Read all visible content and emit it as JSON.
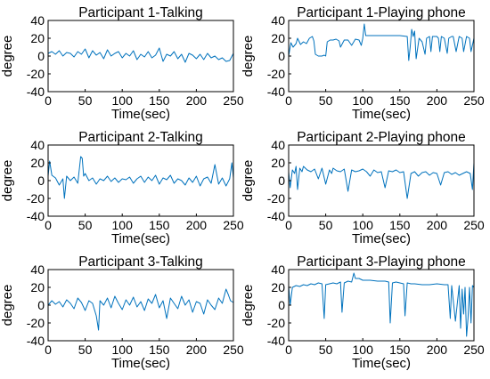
{
  "figure": {
    "colors": {
      "series": "#0072bd",
      "axis": "#000000",
      "background": "#ffffff"
    }
  },
  "chart_data": [
    {
      "type": "line",
      "title": "Participant 1-Talking",
      "xlabel": "Time(sec)",
      "ylabel": "degree",
      "xlim": [
        0,
        250
      ],
      "ylim": [
        -40,
        40
      ],
      "xticks": [
        0,
        50,
        100,
        150,
        200,
        250
      ],
      "yticks": [
        -40,
        -20,
        0,
        20,
        40
      ],
      "grid": false,
      "series": [
        {
          "x": [
            0,
            5,
            10,
            15,
            20,
            25,
            30,
            35,
            40,
            45,
            50,
            55,
            60,
            65,
            70,
            75,
            80,
            85,
            90,
            95,
            100,
            105,
            110,
            115,
            120,
            125,
            130,
            135,
            140,
            145,
            150,
            155,
            160,
            165,
            170,
            175,
            180,
            185,
            190,
            195,
            200,
            205,
            210,
            215,
            220,
            225,
            230,
            235,
            240,
            245,
            250
          ],
          "y": [
            3,
            5,
            2,
            6,
            0,
            4,
            3,
            -1,
            5,
            2,
            8,
            -2,
            6,
            1,
            4,
            -3,
            7,
            0,
            3,
            5,
            -2,
            3,
            0,
            6,
            -4,
            2,
            -1,
            5,
            -2,
            1,
            9,
            -6,
            2,
            0,
            5,
            -3,
            2,
            -7,
            3,
            1,
            -3,
            2,
            -4,
            3,
            -2,
            0,
            -4,
            -2,
            -6,
            -5,
            3
          ]
        }
      ]
    },
    {
      "type": "line",
      "title": "Participant 1-Playing phone",
      "xlabel": "Time(sec)",
      "ylabel": "degree",
      "xlim": [
        0,
        250
      ],
      "ylim": [
        -40,
        40
      ],
      "xticks": [
        0,
        50,
        100,
        150,
        200,
        250
      ],
      "yticks": [
        -40,
        -20,
        0,
        20,
        40
      ],
      "grid": false,
      "series": [
        {
          "x": [
            0,
            3,
            6,
            10,
            12,
            16,
            20,
            24,
            28,
            32,
            34,
            36,
            40,
            45,
            48,
            50,
            52,
            56,
            60,
            64,
            68,
            70,
            75,
            80,
            85,
            90,
            95,
            98,
            100,
            102,
            104,
            106,
            110,
            120,
            130,
            140,
            150,
            160,
            162,
            164,
            166,
            168,
            170,
            172,
            176,
            180,
            184,
            186,
            190,
            192,
            194,
            200,
            202,
            204,
            206,
            210,
            214,
            216,
            220,
            222,
            226,
            230,
            234,
            236,
            240,
            244,
            246,
            250
          ],
          "y": [
            0,
            15,
            10,
            14,
            20,
            13,
            16,
            14,
            20,
            22,
            17,
            2,
            0,
            0,
            1,
            0,
            16,
            18,
            18,
            19,
            17,
            10,
            18,
            18,
            12,
            19,
            18,
            12,
            20,
            36,
            23,
            23,
            23,
            23,
            23,
            23,
            23,
            22,
            -5,
            10,
            30,
            22,
            28,
            -3,
            20,
            16,
            2,
            20,
            22,
            5,
            22,
            22,
            20,
            5,
            22,
            20,
            3,
            20,
            22,
            22,
            5,
            22,
            20,
            5,
            22,
            20,
            5,
            20
          ]
        }
      ]
    },
    {
      "type": "line",
      "title": "Participant 2-Talking",
      "xlabel": "Time(sec)",
      "ylabel": "degree",
      "xlim": [
        0,
        250
      ],
      "ylim": [
        -40,
        40
      ],
      "xticks": [
        0,
        50,
        100,
        150,
        200,
        250
      ],
      "yticks": [
        -40,
        -20,
        0,
        20,
        40
      ],
      "grid": false,
      "series": [
        {
          "x": [
            0,
            2,
            5,
            10,
            15,
            20,
            22,
            25,
            30,
            35,
            40,
            44,
            46,
            48,
            50,
            55,
            60,
            65,
            70,
            75,
            80,
            85,
            90,
            95,
            100,
            105,
            110,
            115,
            120,
            125,
            130,
            135,
            140,
            145,
            150,
            155,
            160,
            165,
            170,
            175,
            180,
            185,
            190,
            195,
            200,
            205,
            210,
            215,
            220,
            225,
            230,
            235,
            240,
            245,
            248,
            250
          ],
          "y": [
            5,
            22,
            6,
            3,
            -5,
            2,
            -20,
            5,
            0,
            4,
            -3,
            27,
            25,
            5,
            8,
            0,
            3,
            -4,
            2,
            0,
            5,
            -1,
            3,
            -2,
            2,
            1,
            4,
            -3,
            2,
            5,
            -2,
            4,
            0,
            6,
            -4,
            3,
            1,
            6,
            -3,
            2,
            0,
            -5,
            3,
            -2,
            5,
            -6,
            2,
            4,
            -3,
            18,
            -4,
            3,
            -6,
            2,
            20,
            3
          ]
        }
      ]
    },
    {
      "type": "line",
      "title": "Participant 2-Playing phone",
      "xlabel": "Time(sec)",
      "ylabel": "degree",
      "xlim": [
        0,
        250
      ],
      "ylim": [
        -40,
        40
      ],
      "xticks": [
        0,
        50,
        100,
        150,
        200,
        250
      ],
      "yticks": [
        -40,
        -20,
        0,
        20,
        40
      ],
      "grid": false,
      "series": [
        {
          "x": [
            0,
            2,
            5,
            8,
            10,
            12,
            15,
            18,
            20,
            25,
            30,
            35,
            40,
            45,
            50,
            55,
            58,
            60,
            65,
            70,
            75,
            80,
            85,
            90,
            95,
            100,
            105,
            110,
            115,
            120,
            125,
            130,
            135,
            140,
            145,
            150,
            155,
            160,
            165,
            170,
            175,
            180,
            185,
            190,
            195,
            200,
            205,
            210,
            215,
            220,
            225,
            230,
            235,
            240,
            245,
            248,
            250
          ],
          "y": [
            10,
            -8,
            12,
            8,
            16,
            -10,
            14,
            10,
            16,
            12,
            10,
            13,
            2,
            14,
            -4,
            12,
            8,
            14,
            11,
            10,
            13,
            -12,
            12,
            10,
            11,
            13,
            10,
            5,
            12,
            9,
            10,
            -8,
            11,
            10,
            12,
            9,
            10,
            -20,
            8,
            10,
            5,
            9,
            10,
            6,
            9,
            8,
            -5,
            9,
            10,
            7,
            9,
            6,
            8,
            10,
            8,
            -10,
            20
          ]
        }
      ]
    },
    {
      "type": "line",
      "title": "Participant 3-Talking",
      "xlabel": "Time(sec)",
      "ylabel": "degree",
      "xlim": [
        0,
        250
      ],
      "ylim": [
        -40,
        40
      ],
      "xticks": [
        0,
        50,
        100,
        150,
        200,
        250
      ],
      "yticks": [
        -40,
        -20,
        0,
        20,
        40
      ],
      "grid": false,
      "series": [
        {
          "x": [
            0,
            5,
            10,
            15,
            20,
            25,
            30,
            35,
            40,
            45,
            50,
            55,
            60,
            65,
            68,
            70,
            75,
            80,
            85,
            90,
            95,
            100,
            105,
            110,
            115,
            120,
            125,
            130,
            135,
            140,
            145,
            150,
            155,
            160,
            165,
            170,
            175,
            180,
            185,
            190,
            195,
            200,
            205,
            210,
            215,
            220,
            225,
            230,
            235,
            240,
            243,
            246,
            250
          ],
          "y": [
            0,
            5,
            1,
            4,
            -2,
            6,
            2,
            -4,
            8,
            3,
            -6,
            5,
            2,
            -12,
            -28,
            5,
            0,
            8,
            -3,
            10,
            2,
            -5,
            6,
            0,
            9,
            -2,
            4,
            -6,
            7,
            2,
            12,
            -3,
            5,
            -15,
            8,
            2,
            -4,
            10,
            0,
            6,
            -8,
            4,
            2,
            -10,
            6,
            0,
            -5,
            8,
            2,
            18,
            12,
            5,
            3
          ]
        }
      ]
    },
    {
      "type": "line",
      "title": "Participant 3-Playing phone",
      "xlabel": "Time(sec)",
      "ylabel": "degree",
      "xlim": [
        0,
        250
      ],
      "ylim": [
        -40,
        40
      ],
      "xticks": [
        0,
        50,
        100,
        150,
        200,
        250
      ],
      "yticks": [
        -40,
        -20,
        0,
        20,
        40
      ],
      "grid": false,
      "series": [
        {
          "x": [
            0,
            2,
            5,
            10,
            15,
            20,
            25,
            30,
            35,
            40,
            45,
            48,
            50,
            55,
            60,
            65,
            70,
            72,
            75,
            80,
            85,
            88,
            90,
            95,
            100,
            110,
            120,
            130,
            135,
            137,
            140,
            145,
            150,
            155,
            157,
            160,
            165,
            170,
            180,
            190,
            200,
            210,
            215,
            218,
            220,
            225,
            230,
            232,
            234,
            236,
            238,
            240,
            242,
            244,
            246,
            248,
            250
          ],
          "y": [
            22,
            0,
            20,
            22,
            21,
            23,
            22,
            24,
            23,
            25,
            24,
            -15,
            23,
            24,
            25,
            24,
            26,
            -8,
            25,
            27,
            26,
            36,
            30,
            30,
            28,
            28,
            27,
            27,
            26,
            -20,
            25,
            26,
            25,
            24,
            -12,
            25,
            24,
            24,
            23,
            23,
            24,
            23,
            23,
            -15,
            22,
            -18,
            22,
            -26,
            18,
            -10,
            20,
            -35,
            -15,
            20,
            -20,
            22,
            20
          ]
        }
      ]
    }
  ]
}
